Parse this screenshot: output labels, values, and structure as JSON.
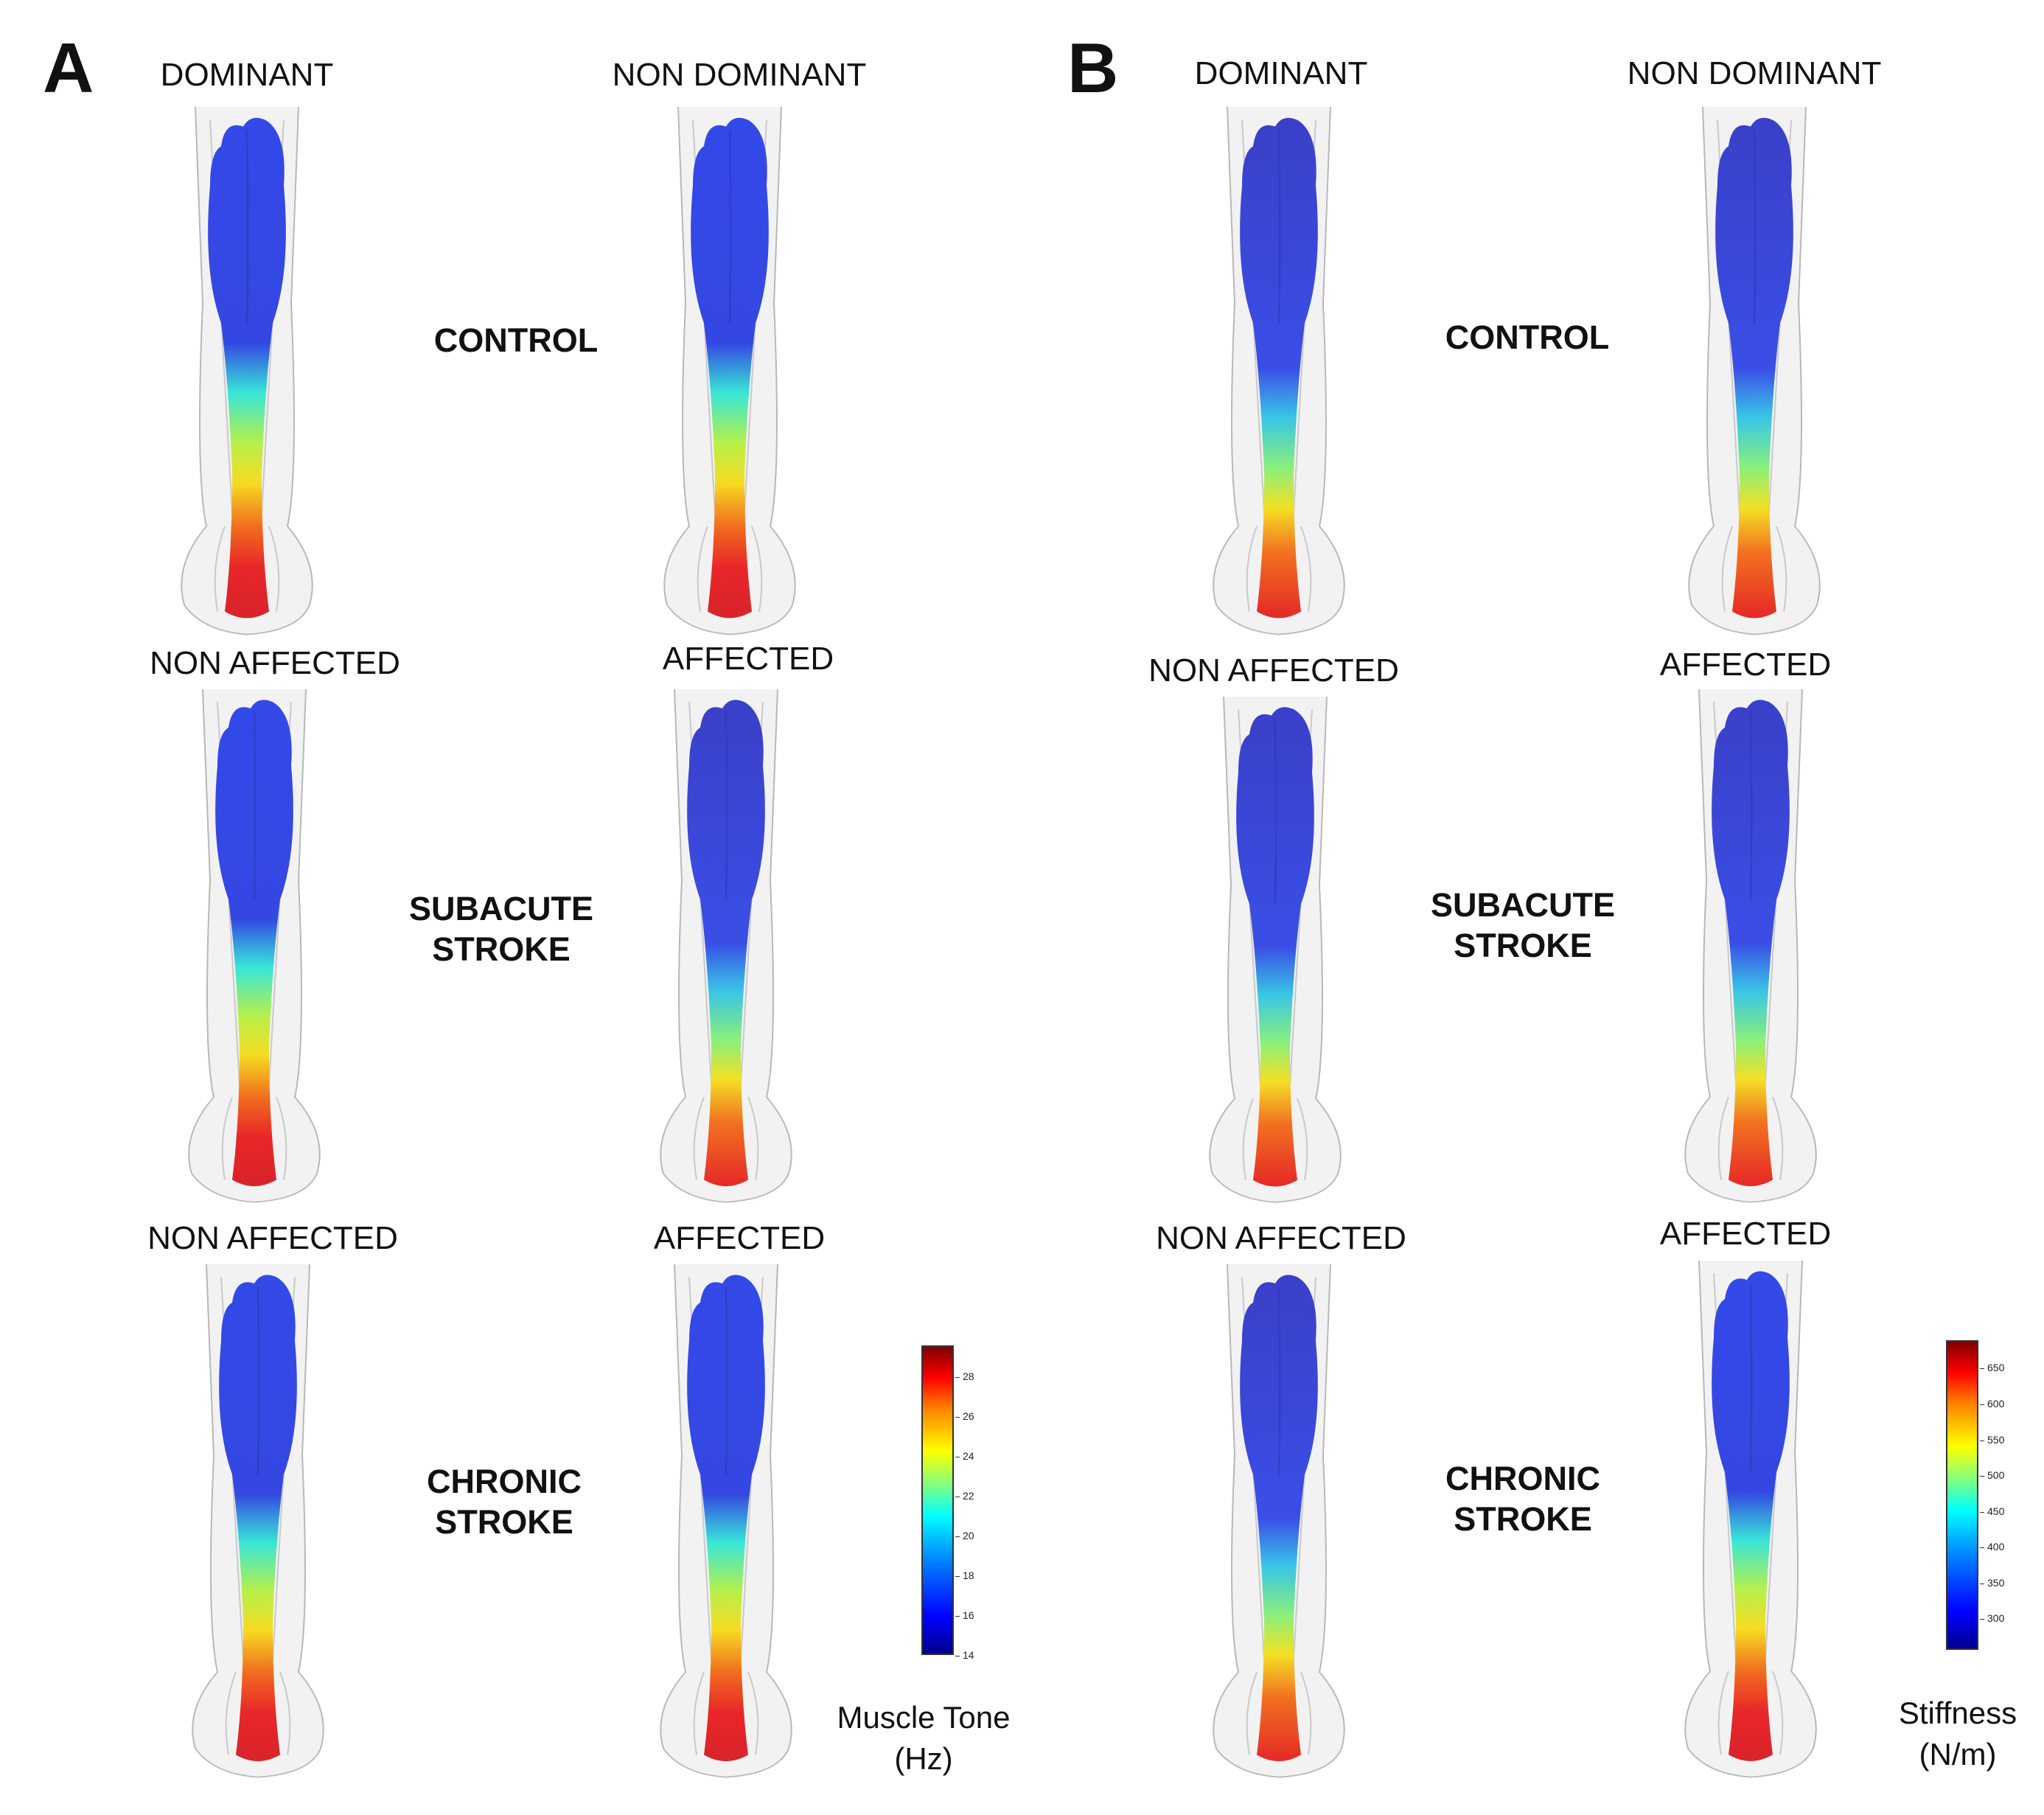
{
  "panels": [
    {
      "letter": "A",
      "groups": [
        {
          "left_label": "DOMINANT",
          "right_label": "NON DOMINANT",
          "group_label": [
            "CONTROL"
          ]
        },
        {
          "left_label": "NON AFFECTED",
          "right_label": "AFFECTED",
          "group_label": [
            "SUBACUTE",
            "STROKE"
          ]
        },
        {
          "left_label": "NON AFFECTED",
          "right_label": "AFFECTED",
          "group_label": [
            "CHRONIC",
            "STROKE"
          ]
        }
      ],
      "scale": {
        "title": [
          "Muscle Tone",
          "(Hz)"
        ],
        "ticks": [
          "28",
          "26",
          "24",
          "22",
          "20",
          "18",
          "16",
          "14"
        ]
      }
    },
    {
      "letter": "B",
      "groups": [
        {
          "left_label": "DOMINANT",
          "right_label": "NON DOMINANT",
          "group_label": [
            "CONTROL"
          ]
        },
        {
          "left_label": "NON AFFECTED",
          "right_label": "AFFECTED",
          "group_label": [
            "SUBACUTE",
            "STROKE"
          ]
        },
        {
          "left_label": "NON AFFECTED",
          "right_label": "AFFECTED",
          "group_label": [
            "CHRONIC",
            "STROKE"
          ]
        }
      ],
      "scale": {
        "title": [
          "Stiffness",
          "(N/m)"
        ],
        "ticks": [
          "650",
          "600",
          "550",
          "500",
          "450",
          "400",
          "350",
          "300"
        ]
      }
    }
  ],
  "colors": {
    "low": "#2a3fe0",
    "mid": "#38e6d8",
    "warm": "#f3e02a",
    "high": "#e8262a",
    "outline": "#b8b8b8"
  }
}
